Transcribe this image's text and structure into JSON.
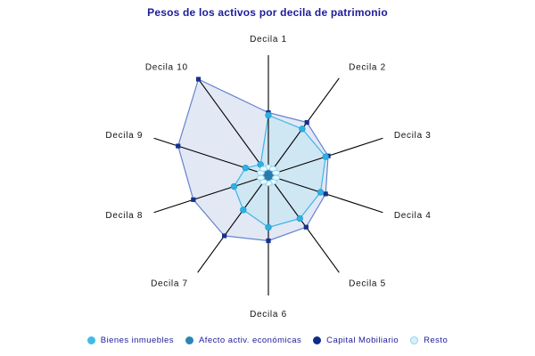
{
  "title": "Pesos de los activos por decila de patrimonio",
  "colors": {
    "title_text": "#1c1c9c",
    "legend_text": "#1c1c9c",
    "axis_line": "#000000",
    "axis_label_text": "#111111",
    "background": "#ffffff"
  },
  "chart_data": {
    "type": "radar",
    "title": "Pesos de los activos por decila de patrimonio",
    "categories": [
      "Decila 1",
      "Decila 2",
      "Decila 3",
      "Decila 4",
      "Decila 5",
      "Decila 6",
      "Decila 7",
      "Decila 8",
      "Decila 9",
      "Decila 10"
    ],
    "axis_max": 90,
    "grid": "spokes-only",
    "legend_position": "bottom",
    "series": [
      {
        "name": "Bienes inmuebles",
        "values": [
          45,
          43,
          45,
          41,
          40,
          39,
          32,
          27,
          18,
          10
        ],
        "line_color": "#3bb6e7",
        "fill_color": "#cfe6f3",
        "marker": "circle",
        "marker_color": "#2fb0e2",
        "above_axes": false,
        "legend_swatch": "#3fbce9"
      },
      {
        "name": "Afecto activ. económicas",
        "values": [
          3,
          3,
          3,
          3,
          3,
          3,
          3,
          4,
          5,
          5
        ],
        "line_color": "#2a7cb0",
        "fill_color": "#2e75ac",
        "marker": "square",
        "marker_color": "#2a7cb0",
        "above_axes": true,
        "legend_swatch": "#2a85b8"
      },
      {
        "name": "Capital Mobiliario",
        "values": [
          47,
          49,
          47,
          45,
          48,
          49,
          56,
          59,
          71,
          89
        ],
        "line_color": "#6683cf",
        "fill_color": "#e3e8f5",
        "marker": "square",
        "marker_color": "#15318e",
        "above_axes": false,
        "legend_swatch": "#0c2d89"
      },
      {
        "name": "Resto",
        "values": [
          6,
          6,
          6,
          6,
          6,
          6,
          6,
          6,
          6,
          6
        ],
        "line_color": "#a8e0f2",
        "fill_color": "none",
        "marker": "ellipse",
        "marker_color": "#eaf8fd",
        "marker_stroke": "#90d7ee",
        "above_axes": true,
        "legend_swatch": "#d8f2fa",
        "legend_swatch_border": "#8fd3ea"
      }
    ],
    "polygon_draw_order": [
      "Capital Mobiliario",
      "Bienes inmuebles"
    ],
    "polygon_draw_order_above": [
      "Afecto activ. económicas",
      "Resto"
    ],
    "marker_draw_order": [
      "Capital Mobiliario",
      "Bienes inmuebles",
      "Afecto activ. económicas",
      "Resto"
    ]
  },
  "legend": {
    "items": [
      {
        "label": "Bienes inmuebles"
      },
      {
        "label": "Afecto activ. económicas"
      },
      {
        "label": "Capital Mobiliario"
      },
      {
        "label": "Resto"
      }
    ]
  }
}
